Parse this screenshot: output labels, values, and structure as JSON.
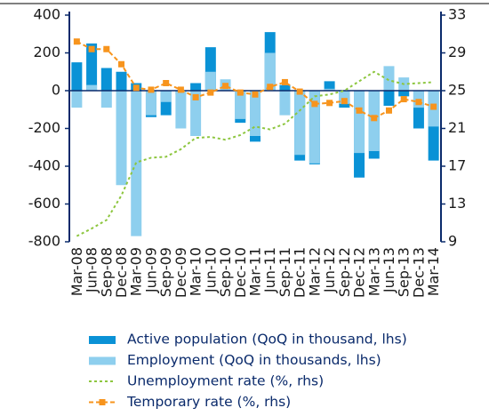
{
  "chart_data": {
    "type": "bar-line",
    "categories": [
      "Mar-08",
      "Jun-08",
      "Sep-08",
      "Dec-08",
      "Mar-09",
      "Jun-09",
      "Sep-09",
      "Dec-09",
      "Mar-10",
      "Jun-10",
      "Sep-10",
      "Dec-10",
      "Mar-11",
      "Jun-11",
      "Sep-11",
      "Dec-11",
      "Mar-12",
      "Jun-12",
      "Sep-12",
      "Dec-12",
      "Mar-13",
      "Jun-13",
      "Sep-13",
      "Dec-13",
      "Mar-14"
    ],
    "series": [
      {
        "name": "Active population (QoQ in thousand, lhs)",
        "type": "bar",
        "color": "#0a92d6",
        "values": [
          150,
          250,
          120,
          100,
          40,
          -140,
          -130,
          -20,
          40,
          230,
          10,
          -170,
          -270,
          310,
          30,
          -370,
          -390,
          50,
          -90,
          -460,
          -360,
          -80,
          -30,
          -200,
          -370
        ]
      },
      {
        "name": "Employment (QoQ in thousands, lhs)",
        "type": "bar",
        "color": "#8ecfee",
        "values": [
          -90,
          30,
          -90,
          -500,
          -770,
          -130,
          -60,
          -200,
          -240,
          100,
          60,
          -150,
          -240,
          200,
          -130,
          -340,
          -385,
          10,
          -70,
          -330,
          -320,
          130,
          70,
          -90,
          -190
        ]
      },
      {
        "name": "Unemployment rate (%, rhs)",
        "type": "line",
        "axis": "y2",
        "color": "#8dc63f",
        "dash": "3,3",
        "values": [
          9.6,
          10.4,
          11.3,
          13.9,
          17.4,
          17.9,
          18.0,
          18.8,
          20.0,
          20.1,
          19.8,
          20.3,
          21.2,
          20.9,
          21.5,
          22.9,
          24.4,
          24.6,
          25.0,
          26.0,
          27.0,
          26.1,
          25.7,
          25.8,
          25.9
        ]
      },
      {
        "name": "Temporary rate (%, rhs)",
        "type": "line",
        "axis": "y2",
        "color": "#f7941d",
        "dash": "5,3",
        "marker": "square",
        "values": [
          30.2,
          29.4,
          29.4,
          27.8,
          25.3,
          25.1,
          25.8,
          25.1,
          24.3,
          24.8,
          25.5,
          24.8,
          24.6,
          25.4,
          25.9,
          24.9,
          23.6,
          23.7,
          23.9,
          22.9,
          22.1,
          22.9,
          24.1,
          23.8,
          23.3
        ]
      }
    ],
    "ylim": [
      -800,
      400
    ],
    "yticks": [
      -800,
      -600,
      -400,
      -200,
      0,
      200,
      400
    ],
    "y2lim": [
      9,
      33
    ],
    "y2ticks": [
      9,
      13,
      17,
      21,
      25,
      29,
      33
    ],
    "grid": false
  }
}
